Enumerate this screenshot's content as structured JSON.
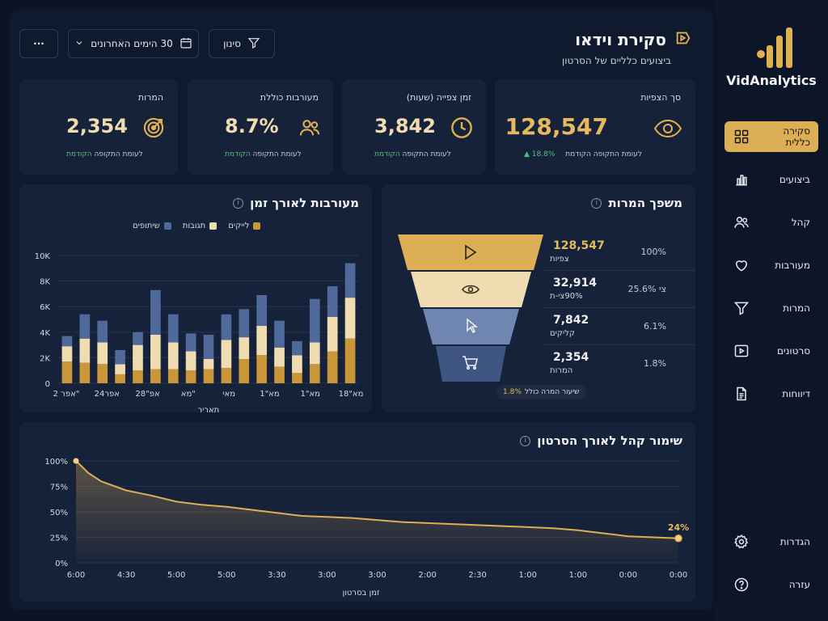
{
  "brand": {
    "name": "VidAnalytics"
  },
  "sidebar": {
    "items": [
      {
        "label": "סקירה כללית",
        "icon": "grid-icon",
        "active": true
      },
      {
        "label": "ביצועים",
        "icon": "bar-chart-icon"
      },
      {
        "label": "קהל",
        "icon": "users-icon"
      },
      {
        "label": "מעורבות",
        "icon": "heart-icon"
      },
      {
        "label": "המרות",
        "icon": "filter-icon"
      },
      {
        "label": "סרטונים",
        "icon": "video-icon"
      },
      {
        "label": "דיווחות",
        "icon": "document-icon"
      }
    ],
    "bottom": [
      {
        "label": "הגדרות",
        "icon": "gear-icon"
      },
      {
        "label": "עזרה",
        "icon": "help-icon"
      }
    ]
  },
  "header": {
    "title": "סקירת וידאו",
    "subtitle": "ביצועים כלליים של הסרטון",
    "filter_label": "סינון",
    "range_label": "30 הימים האחרונים",
    "more_label": "···"
  },
  "kpis": [
    {
      "label": "סך הצפיות",
      "value": "128,547",
      "delta": "18.8% ▲",
      "note": "לעומת התקופה הקודמת",
      "icon": "eye-icon"
    },
    {
      "label": "זמן צפייה (שעות)",
      "value": "3,842",
      "note": "לעומת התקופה",
      "note_green": "הקודמת",
      "icon": "clock-icon"
    },
    {
      "label": "מעורבות כוללת",
      "value": "8.7%",
      "note": "לעומת התקופה",
      "note_green": "הקודמת",
      "icon": "users-icon"
    },
    {
      "label": "המרות",
      "value": "2,354",
      "note": "לעומת התקופה",
      "note_green": "הקודמת",
      "icon": "target-icon"
    }
  ],
  "engagement": {
    "title": "מעורבות לאורך זמן",
    "legend": [
      "לייקים",
      "תגובות",
      "שיתופים"
    ],
    "colors": {
      "likes": "#c9963a",
      "comments": "#efdcb0",
      "shares": "#4f6a9a"
    }
  },
  "funnel": {
    "title": "משפך המרות",
    "stages": [
      {
        "value": "128,547",
        "label": "צפיות",
        "pct": "100%",
        "icon": "play-icon",
        "color": "#dcae55"
      },
      {
        "value": "32,914",
        "label": "90%צי-ת",
        "pct": "25.6% צי",
        "icon": "eye-icon",
        "color": "#efdcb0"
      },
      {
        "value": "7,842",
        "label": "קליקים",
        "pct": "6.1%",
        "icon": "cursor-icon",
        "color": "#6f86b0"
      },
      {
        "value": "2,354",
        "label": "המרות",
        "pct": "1.8%",
        "icon": "cart-icon",
        "color": "#3f5682"
      }
    ],
    "badge_label": "שיעור המרה כולל",
    "badge_value": "1.8%"
  },
  "retention": {
    "title": "שימור קהל לאורך הסרטון",
    "end_label": "24%"
  },
  "chart_data": [
    {
      "type": "bar",
      "stacked": true,
      "title": "מעורבות לאורך זמן",
      "xlabel": "תאריך",
      "ylabel": "",
      "ylim": [
        0,
        10000
      ],
      "yticks": [
        "0",
        "2K",
        "4K",
        "6K",
        "8K",
        "10K"
      ],
      "x_tick_labels": [
        "אפר 2\"",
        "אפר24",
        "אפ\"28",
        "מא\"",
        "מאי",
        "מא\"1",
        "מא\"1",
        "מא\"18"
      ],
      "categories": [
        "1",
        "2",
        "3",
        "4",
        "5",
        "6",
        "7",
        "8",
        "9",
        "10",
        "11",
        "12",
        "13",
        "14",
        "15",
        "16",
        "17"
      ],
      "series": [
        {
          "name": "לייקים",
          "values": [
            1700,
            1600,
            1500,
            700,
            1000,
            1100,
            1100,
            1000,
            1100,
            1200,
            1900,
            2200,
            1300,
            800,
            1500,
            2500,
            3500
          ]
        },
        {
          "name": "תגובות",
          "values": [
            1200,
            1900,
            1700,
            800,
            2000,
            2700,
            2100,
            1500,
            800,
            2200,
            1700,
            2300,
            1500,
            1400,
            1700,
            2700,
            3200
          ]
        },
        {
          "name": "שיתופים",
          "values": [
            800,
            1900,
            1700,
            1100,
            1000,
            3500,
            2200,
            1400,
            1900,
            2000,
            2200,
            2400,
            2100,
            1100,
            3400,
            2400,
            2700
          ]
        }
      ],
      "legend": "top-center"
    },
    {
      "type": "area",
      "title": "שימור קהל לאורך הסרטון",
      "xlabel": "זמן בסרטון",
      "ylabel": "",
      "ylim": [
        0,
        100
      ],
      "yticks": [
        "0%",
        "25%",
        "50%",
        "75%",
        "100%"
      ],
      "x_tick_labels": [
        "6:00",
        "4:30",
        "5:00",
        "5:00",
        "3:30",
        "3:00",
        "3:00",
        "2:00",
        "2:30",
        "1:00",
        "1:00",
        "0:00",
        "0:00"
      ],
      "x": [
        0,
        0.5,
        1,
        2,
        3,
        4,
        5,
        6,
        7,
        8,
        9,
        10,
        11,
        12,
        13,
        14,
        15,
        16,
        17,
        18,
        19,
        20,
        21,
        22,
        23,
        24
      ],
      "values": [
        100,
        88,
        80,
        71,
        66,
        60,
        57,
        55,
        52,
        49,
        46,
        45,
        44,
        42,
        40,
        39,
        38,
        37,
        36,
        35,
        34,
        32,
        29,
        26,
        25,
        24
      ],
      "end_label": "24%",
      "grid": true
    }
  ]
}
